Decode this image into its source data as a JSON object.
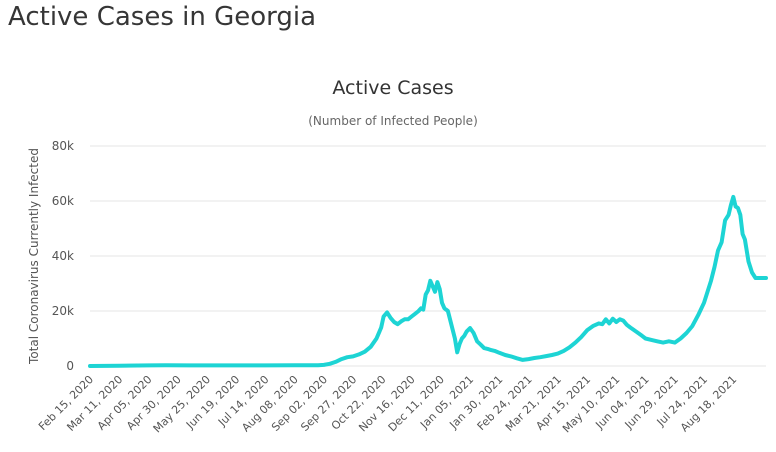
{
  "page": {
    "title": "Active Cases in Georgia"
  },
  "colors": {
    "line": "#1dd4d4",
    "grid": "#e6e6e6",
    "text": "#333333",
    "axis_text": "#555555"
  },
  "chart_data": {
    "type": "line",
    "title": "Active Cases",
    "subtitle": "(Number of Infected People)",
    "xlabel": "",
    "ylabel": "Total Coronavirus Currently Infected",
    "ylim": [
      0,
      80000
    ],
    "yticks": [
      0,
      20000,
      40000,
      60000,
      80000
    ],
    "ytick_labels": [
      "0",
      "20k",
      "40k",
      "60k",
      "80k"
    ],
    "grid": true,
    "legend": "none",
    "x_start": "2020-02-15",
    "x_end": "2021-09-15",
    "xtick_labels": [
      "Feb 15, 2020",
      "Mar 11, 2020",
      "Apr 05, 2020",
      "Apr 30, 2020",
      "May 25, 2020",
      "Jun 19, 2020",
      "Jul 14, 2020",
      "Aug 08, 2020",
      "Sep 02, 2020",
      "Sep 27, 2020",
      "Oct 22, 2020",
      "Nov 16, 2020",
      "Dec 11, 2020",
      "Jan 05, 2021",
      "Jan 30, 2021",
      "Feb 24, 2021",
      "Mar 21, 2021",
      "Apr 15, 2021",
      "May 10, 2021",
      "Jun 04, 2021",
      "Jun 29, 2021",
      "Jul 24, 2021",
      "Aug 18, 2021"
    ],
    "series": [
      {
        "x": [
          "2020-02-15",
          "2020-03-11",
          "2020-04-05",
          "2020-04-20",
          "2020-05-10",
          "2020-06-19",
          "2020-07-14",
          "2020-08-08",
          "2020-08-28",
          "2020-09-02",
          "2020-09-07",
          "2020-09-12",
          "2020-09-17",
          "2020-09-22",
          "2020-09-27",
          "2020-10-02",
          "2020-10-07",
          "2020-10-12",
          "2020-10-17",
          "2020-10-21",
          "2020-10-23",
          "2020-10-26",
          "2020-10-29",
          "2020-11-01",
          "2020-11-04",
          "2020-11-07",
          "2020-11-10",
          "2020-11-13",
          "2020-11-16",
          "2020-11-19",
          "2020-11-22",
          "2020-11-24",
          "2020-11-26",
          "2020-11-28",
          "2020-11-30",
          "2020-12-02",
          "2020-12-04",
          "2020-12-06",
          "2020-12-08",
          "2020-12-10",
          "2020-12-12",
          "2020-12-14",
          "2020-12-17",
          "2020-12-20",
          "2020-12-23",
          "2020-12-25",
          "2020-12-27",
          "2020-12-29",
          "2020-12-31",
          "2021-01-02",
          "2021-01-05",
          "2021-01-08",
          "2021-01-11",
          "2021-01-14",
          "2021-01-17",
          "2021-01-20",
          "2021-01-23",
          "2021-01-26",
          "2021-01-30",
          "2021-02-04",
          "2021-02-09",
          "2021-02-14",
          "2021-02-19",
          "2021-02-24",
          "2021-03-01",
          "2021-03-06",
          "2021-03-11",
          "2021-03-16",
          "2021-03-21",
          "2021-03-26",
          "2021-03-31",
          "2021-04-05",
          "2021-04-10",
          "2021-04-15",
          "2021-04-20",
          "2021-04-25",
          "2021-04-28",
          "2021-05-01",
          "2021-05-04",
          "2021-05-07",
          "2021-05-10",
          "2021-05-13",
          "2021-05-16",
          "2021-05-19",
          "2021-05-22",
          "2021-05-27",
          "2021-06-01",
          "2021-06-04",
          "2021-06-09",
          "2021-06-14",
          "2021-06-19",
          "2021-06-24",
          "2021-06-29",
          "2021-07-04",
          "2021-07-09",
          "2021-07-14",
          "2021-07-19",
          "2021-07-24",
          "2021-07-27",
          "2021-07-30",
          "2021-08-02",
          "2021-08-05",
          "2021-08-08",
          "2021-08-11",
          "2021-08-14",
          "2021-08-16",
          "2021-08-18",
          "2021-08-20",
          "2021-08-22",
          "2021-08-24",
          "2021-08-26",
          "2021-08-28",
          "2021-08-31",
          "2021-09-03",
          "2021-09-06",
          "2021-09-09",
          "2021-09-12",
          "2021-09-15"
        ],
        "values": [
          0,
          100,
          200,
          300,
          200,
          200,
          200,
          300,
          300,
          400,
          800,
          1500,
          2500,
          3200,
          3500,
          4200,
          5200,
          7000,
          10000,
          14000,
          18000,
          19500,
          17500,
          16000,
          15200,
          16200,
          17000,
          17000,
          18000,
          19000,
          20000,
          21000,
          20500,
          26000,
          27500,
          31000,
          29000,
          27000,
          30500,
          28000,
          23000,
          21000,
          20000,
          15000,
          10000,
          5000,
          8000,
          10000,
          11000,
          12500,
          13800,
          12000,
          9000,
          7800,
          6500,
          6200,
          5800,
          5500,
          4800,
          4000,
          3500,
          2800,
          2200,
          2500,
          2900,
          3200,
          3600,
          4000,
          4500,
          5500,
          6800,
          8500,
          10500,
          13000,
          14500,
          15500,
          15200,
          17000,
          15500,
          17200,
          16000,
          17000,
          16500,
          15000,
          14000,
          12500,
          11000,
          10000,
          9500,
          9000,
          8500,
          9000,
          8500,
          10000,
          12000,
          14500,
          18500,
          23000,
          27000,
          31000,
          36000,
          42000,
          45000,
          53000,
          55000,
          58500,
          61500,
          58000,
          57500,
          55000,
          48000,
          46000,
          38000,
          34000,
          32000,
          32000,
          32000,
          32000
        ]
      }
    ]
  }
}
